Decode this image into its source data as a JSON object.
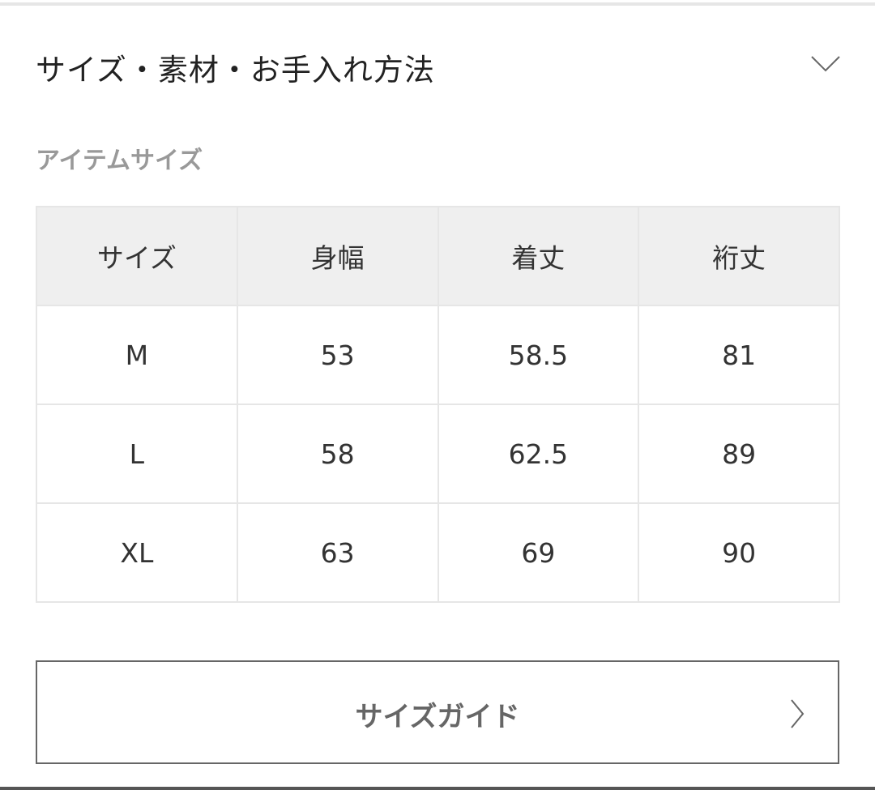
{
  "section": {
    "title": "サイズ・素材・お手入れ方法",
    "toggle_icon": "chevron-down-icon"
  },
  "item_size": {
    "title": "アイテムサイズ",
    "headers": [
      "サイズ",
      "身幅",
      "着丈",
      "裄丈"
    ],
    "rows": [
      [
        "M",
        "53",
        "58.5",
        "81"
      ],
      [
        "L",
        "58",
        "62.5",
        "89"
      ],
      [
        "XL",
        "63",
        "69",
        "90"
      ]
    ]
  },
  "size_guide": {
    "label": "サイズガイド",
    "icon": "chevron-right-icon"
  },
  "colors": {
    "header_bg": "#efefef",
    "border": "#e6e6e6",
    "button_border": "#666666"
  }
}
